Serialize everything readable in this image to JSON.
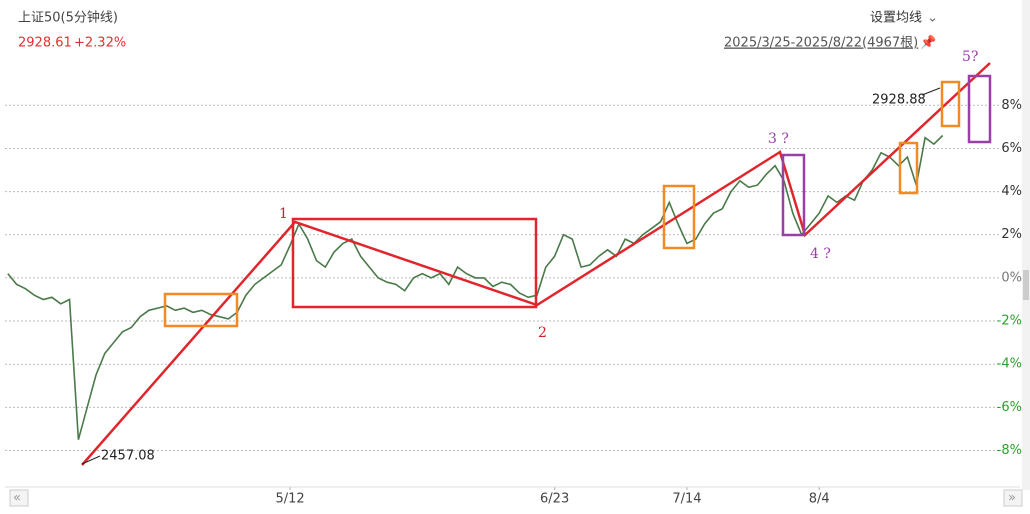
{
  "header": {
    "title": "上证50(5分钟线)",
    "price": "2928.61",
    "change": "+2.32%",
    "ma_button": "设置均线",
    "range": "2025/3/25-2025/8/22(4967根)"
  },
  "chart_data": {
    "type": "line",
    "color": "#4a7a4a",
    "categories": [
      null,
      null,
      null,
      null,
      null,
      null,
      null,
      null,
      null,
      null,
      null,
      null,
      null,
      null,
      null,
      null,
      null,
      null,
      null,
      null,
      null,
      null,
      null,
      null,
      null,
      null,
      null,
      null,
      null,
      null,
      null,
      null,
      "5/12",
      null,
      null,
      null,
      null,
      null,
      null,
      null,
      null,
      null,
      null,
      null,
      null,
      null,
      null,
      null,
      null,
      null,
      null,
      null,
      null,
      null,
      null,
      null,
      null,
      null,
      null,
      null,
      null,
      null,
      "6/23",
      null,
      null,
      null,
      null,
      null,
      null,
      null,
      null,
      null,
      null,
      null,
      null,
      null,
      null,
      "7/14",
      null,
      null,
      null,
      null,
      null,
      null,
      null,
      null,
      null,
      null,
      null,
      null,
      null,
      null,
      "8/4",
      null,
      null,
      null,
      null,
      null,
      null,
      null,
      null,
      null,
      null,
      null,
      null,
      null,
      null
    ],
    "values": [
      0.2,
      -0.3,
      -0.5,
      -0.8,
      -1.0,
      -0.9,
      -1.2,
      -1.0,
      -7.5,
      -6,
      -4.5,
      -3.5,
      -3,
      -2.5,
      -2.3,
      -1.8,
      -1.5,
      -1.4,
      -1.3,
      -1.5,
      -1.4,
      -1.6,
      -1.5,
      -1.7,
      -1.8,
      -1.9,
      -1.6,
      -0.8,
      -0.3,
      0,
      0.3,
      0.6,
      1.5,
      2.5,
      1.8,
      0.8,
      0.5,
      1.2,
      1.6,
      1.8,
      1.0,
      0.5,
      0,
      -0.2,
      -0.3,
      -0.6,
      0,
      0.2,
      0,
      0.2,
      -0.3,
      0.5,
      0.2,
      0,
      0,
      -0.4,
      -0.2,
      -0.3,
      -0.7,
      -0.9,
      -0.8,
      0.5,
      1.0,
      2.0,
      1.8,
      0.5,
      0.6,
      1.0,
      1.3,
      1.0,
      1.8,
      1.6,
      2.0,
      2.3,
      2.6,
      3.5,
      2.5,
      1.6,
      1.8,
      2.5,
      3.0,
      3.2,
      4.0,
      4.5,
      4.2,
      4.3,
      4.8,
      5.2,
      4.5,
      3.0,
      2.0,
      2.5,
      3.0,
      3.8,
      3.5,
      3.8,
      3.6,
      4.5,
      5.0,
      5.8,
      5.6,
      5.2,
      5.6,
      4.3,
      6.5,
      6.2,
      6.6
    ],
    "ylim": [
      -9.6,
      10.1
    ],
    "yticks": [
      {
        "value": 8,
        "label": "8%"
      },
      {
        "value": 6,
        "label": "6%"
      },
      {
        "value": 4,
        "label": "4%"
      },
      {
        "value": 2,
        "label": "2%"
      },
      {
        "value": 0,
        "label": "0%"
      },
      {
        "value": -2,
        "label": "-2%"
      },
      {
        "value": -4,
        "label": "-4%"
      },
      {
        "value": -6,
        "label": "-6%"
      },
      {
        "value": -8,
        "label": "-8%"
      }
    ],
    "grid": true,
    "annotations": [
      "1",
      "2",
      "3 ?",
      "4 ?",
      "5?",
      "2457.08",
      "2928.88"
    ]
  }
}
